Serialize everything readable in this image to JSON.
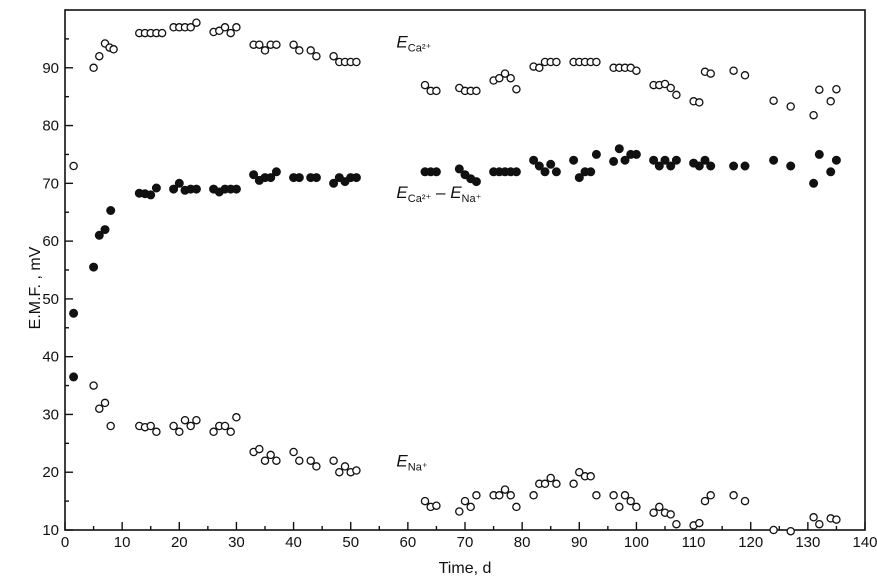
{
  "chart_data": {
    "type": "scatter",
    "title": "",
    "xlabel": "Time, d",
    "ylabel": "E.M.F. , mV",
    "xlim": [
      0,
      140
    ],
    "ylim": [
      10,
      100
    ],
    "xticks": [
      0,
      10,
      20,
      30,
      40,
      50,
      60,
      70,
      80,
      90,
      100,
      110,
      120,
      130,
      140
    ],
    "yticks": [
      10,
      20,
      30,
      40,
      50,
      60,
      70,
      80,
      90
    ],
    "grid": false,
    "legend": "none",
    "annotations": [
      {
        "base": "E",
        "sub": "Ca²⁺",
        "minus_base": "",
        "minus_sub": "",
        "x": 58,
        "y": 93.5
      },
      {
        "base": "E",
        "sub": "Ca²⁺",
        "minus_base": "E",
        "minus_sub": "Na⁺",
        "x": 58,
        "y": 67.5
      },
      {
        "base": "E",
        "sub": "Na⁺",
        "minus_base": "",
        "minus_sub": "",
        "x": 58,
        "y": 21
      }
    ],
    "series": [
      {
        "marker": "open-circle",
        "points": [
          [
            1.5,
            73
          ],
          [
            5,
            90
          ],
          [
            6,
            92
          ],
          [
            7,
            94.2
          ],
          [
            7.8,
            93.5
          ],
          [
            8.5,
            93.2
          ],
          [
            13,
            96
          ],
          [
            14,
            96
          ],
          [
            15,
            96
          ],
          [
            16,
            96
          ],
          [
            17,
            96
          ],
          [
            19,
            97
          ],
          [
            20,
            97
          ],
          [
            21,
            97
          ],
          [
            22,
            97
          ],
          [
            23,
            97.8
          ],
          [
            26,
            96.2
          ],
          [
            27,
            96.4
          ],
          [
            28,
            97
          ],
          [
            29,
            96
          ],
          [
            30,
            97
          ],
          [
            33,
            94
          ],
          [
            34,
            94
          ],
          [
            35,
            93
          ],
          [
            36,
            94
          ],
          [
            37,
            94
          ],
          [
            40,
            94
          ],
          [
            41,
            93
          ],
          [
            43,
            93
          ],
          [
            44,
            92
          ],
          [
            47,
            92
          ],
          [
            48,
            91
          ],
          [
            49,
            91
          ],
          [
            50,
            91
          ],
          [
            51,
            91
          ],
          [
            63,
            87
          ],
          [
            64,
            86
          ],
          [
            65,
            86
          ],
          [
            69,
            86.5
          ],
          [
            70,
            86
          ],
          [
            71,
            86
          ],
          [
            72,
            86
          ],
          [
            75,
            87.8
          ],
          [
            76,
            88.2
          ],
          [
            77,
            89
          ],
          [
            78,
            88.2
          ],
          [
            79,
            86.3
          ],
          [
            82,
            90.2
          ],
          [
            83,
            90
          ],
          [
            84,
            91
          ],
          [
            85,
            91
          ],
          [
            86,
            91
          ],
          [
            89,
            91
          ],
          [
            90,
            91
          ],
          [
            91,
            91
          ],
          [
            92,
            91
          ],
          [
            93,
            91
          ],
          [
            96,
            90
          ],
          [
            97,
            90
          ],
          [
            98,
            90
          ],
          [
            99,
            90
          ],
          [
            100,
            89.5
          ],
          [
            103,
            87
          ],
          [
            104,
            87
          ],
          [
            105,
            87.2
          ],
          [
            106,
            86.5
          ],
          [
            107,
            85.3
          ],
          [
            110,
            84.2
          ],
          [
            111,
            84
          ],
          [
            112,
            89.3
          ],
          [
            113,
            89
          ],
          [
            117,
            89.5
          ],
          [
            119,
            88.7
          ],
          [
            124,
            84.3
          ],
          [
            127,
            83.3
          ],
          [
            131,
            81.8
          ],
          [
            132,
            86.2
          ],
          [
            134,
            84.2
          ],
          [
            135,
            86.3
          ]
        ]
      },
      {
        "marker": "filled-circle",
        "points": [
          [
            1.5,
            36.5
          ],
          [
            1.5,
            47.5
          ],
          [
            5,
            55.5
          ],
          [
            6,
            61
          ],
          [
            7,
            62
          ],
          [
            8,
            65.3
          ],
          [
            13,
            68.3
          ],
          [
            14,
            68.2
          ],
          [
            15,
            68
          ],
          [
            16,
            69.2
          ],
          [
            19,
            69
          ],
          [
            20,
            70
          ],
          [
            21,
            68.8
          ],
          [
            22,
            69
          ],
          [
            23,
            69
          ],
          [
            26,
            69
          ],
          [
            27,
            68.5
          ],
          [
            28,
            69
          ],
          [
            29,
            69
          ],
          [
            30,
            69
          ],
          [
            33,
            71.5
          ],
          [
            34,
            70.5
          ],
          [
            35,
            71
          ],
          [
            36,
            71
          ],
          [
            37,
            72
          ],
          [
            40,
            71
          ],
          [
            41,
            71
          ],
          [
            43,
            71
          ],
          [
            44,
            71
          ],
          [
            47,
            70
          ],
          [
            48,
            71
          ],
          [
            49,
            70.3
          ],
          [
            50,
            71
          ],
          [
            51,
            71
          ],
          [
            63,
            72
          ],
          [
            64,
            72
          ],
          [
            65,
            72
          ],
          [
            69,
            72.5
          ],
          [
            70,
            71.5
          ],
          [
            71,
            70.8
          ],
          [
            72,
            70.3
          ],
          [
            75,
            72
          ],
          [
            76,
            72
          ],
          [
            77,
            72
          ],
          [
            78,
            72
          ],
          [
            79,
            72
          ],
          [
            82,
            74
          ],
          [
            83,
            73
          ],
          [
            84,
            72
          ],
          [
            85,
            73.3
          ],
          [
            86,
            72
          ],
          [
            89,
            74
          ],
          [
            90,
            71
          ],
          [
            91,
            72
          ],
          [
            92,
            72
          ],
          [
            93,
            75
          ],
          [
            96,
            73.8
          ],
          [
            97,
            76
          ],
          [
            98,
            74
          ],
          [
            99,
            75
          ],
          [
            100,
            75
          ],
          [
            103,
            74
          ],
          [
            104,
            73
          ],
          [
            105,
            74
          ],
          [
            106,
            73
          ],
          [
            107,
            74
          ],
          [
            110,
            73.5
          ],
          [
            111,
            73
          ],
          [
            112,
            74
          ],
          [
            113,
            73
          ],
          [
            117,
            73
          ],
          [
            119,
            73
          ],
          [
            124,
            74
          ],
          [
            127,
            73
          ],
          [
            131,
            70
          ],
          [
            132,
            75
          ],
          [
            134,
            72
          ],
          [
            135,
            74
          ]
        ]
      },
      {
        "marker": "open-circle",
        "points": [
          [
            5,
            35
          ],
          [
            6,
            31
          ],
          [
            7,
            32
          ],
          [
            8,
            28
          ],
          [
            13,
            28
          ],
          [
            14,
            27.8
          ],
          [
            15,
            28
          ],
          [
            16,
            27
          ],
          [
            19,
            28
          ],
          [
            20,
            27
          ],
          [
            21,
            29
          ],
          [
            22,
            28
          ],
          [
            23,
            29
          ],
          [
            26,
            27
          ],
          [
            27,
            28
          ],
          [
            28,
            28
          ],
          [
            29,
            27
          ],
          [
            30,
            29.5
          ],
          [
            33,
            23.5
          ],
          [
            34,
            24
          ],
          [
            35,
            22
          ],
          [
            36,
            23
          ],
          [
            37,
            22
          ],
          [
            40,
            23.5
          ],
          [
            41,
            22
          ],
          [
            43,
            22
          ],
          [
            44,
            21
          ],
          [
            47,
            22
          ],
          [
            48,
            20
          ],
          [
            49,
            21
          ],
          [
            50,
            20
          ],
          [
            51,
            20.3
          ],
          [
            63,
            15
          ],
          [
            64,
            14
          ],
          [
            65,
            14.2
          ],
          [
            69,
            13.2
          ],
          [
            70,
            15
          ],
          [
            71,
            14
          ],
          [
            72,
            16
          ],
          [
            75,
            16
          ],
          [
            76,
            16
          ],
          [
            77,
            17
          ],
          [
            78,
            16
          ],
          [
            79,
            14
          ],
          [
            82,
            16
          ],
          [
            83,
            18
          ],
          [
            84,
            18
          ],
          [
            85,
            19
          ],
          [
            86,
            18
          ],
          [
            89,
            18
          ],
          [
            90,
            20
          ],
          [
            91,
            19.3
          ],
          [
            92,
            19.3
          ],
          [
            93,
            16
          ],
          [
            96,
            16
          ],
          [
            97,
            14
          ],
          [
            98,
            16
          ],
          [
            99,
            15
          ],
          [
            100,
            14
          ],
          [
            103,
            13
          ],
          [
            104,
            14
          ],
          [
            105,
            13
          ],
          [
            106,
            12.7
          ],
          [
            107,
            11
          ],
          [
            110,
            10.8
          ],
          [
            111,
            11.2
          ],
          [
            112,
            15
          ],
          [
            113,
            16
          ],
          [
            117,
            16
          ],
          [
            119,
            15
          ],
          [
            124,
            10
          ],
          [
            127,
            9.8
          ],
          [
            131,
            12.2
          ],
          [
            132,
            11
          ],
          [
            134,
            12
          ],
          [
            135,
            11.8
          ]
        ]
      }
    ]
  }
}
